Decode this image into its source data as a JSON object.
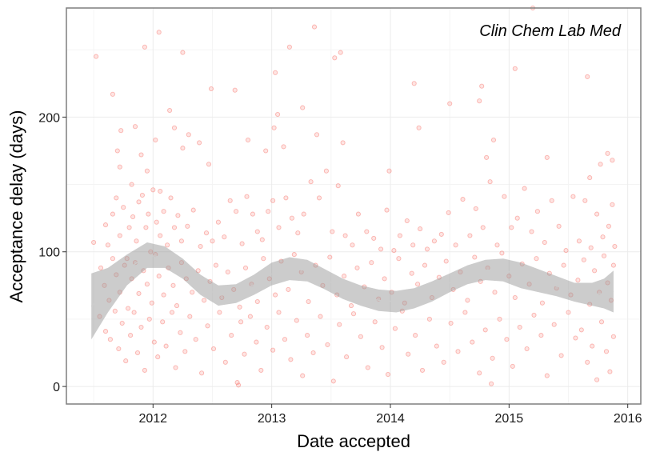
{
  "chart_data": {
    "type": "scatter",
    "annotation": "Clin Chem Lab Med",
    "xlabel": "Date accepted",
    "ylabel": "Acceptance delay (days)",
    "x_ticks": [
      2012,
      2013,
      2014,
      2015,
      2016
    ],
    "y_ticks": [
      0,
      100,
      200
    ],
    "xlim": [
      2011.27,
      2016.11
    ],
    "ylim": [
      -13,
      281
    ],
    "grid": true,
    "point_color": "#f8766d",
    "ribbon_color": "#999999",
    "smooth_line_color": "#cccccc",
    "smooth": [
      {
        "x": 2011.48,
        "lower": 35,
        "upper": 84
      },
      {
        "x": 2011.62,
        "lower": 55,
        "upper": 88
      },
      {
        "x": 2011.78,
        "lower": 75,
        "upper": 98
      },
      {
        "x": 2011.95,
        "lower": 88,
        "upper": 107
      },
      {
        "x": 2012.1,
        "lower": 88,
        "upper": 104
      },
      {
        "x": 2012.25,
        "lower": 80,
        "upper": 95
      },
      {
        "x": 2012.4,
        "lower": 68,
        "upper": 83
      },
      {
        "x": 2012.55,
        "lower": 60,
        "upper": 75
      },
      {
        "x": 2012.7,
        "lower": 62,
        "upper": 76
      },
      {
        "x": 2012.85,
        "lower": 68,
        "upper": 83
      },
      {
        "x": 2013.0,
        "lower": 75,
        "upper": 92
      },
      {
        "x": 2013.15,
        "lower": 79,
        "upper": 96
      },
      {
        "x": 2013.3,
        "lower": 78,
        "upper": 94
      },
      {
        "x": 2013.45,
        "lower": 72,
        "upper": 87
      },
      {
        "x": 2013.6,
        "lower": 65,
        "upper": 80
      },
      {
        "x": 2013.75,
        "lower": 60,
        "upper": 75
      },
      {
        "x": 2013.9,
        "lower": 56,
        "upper": 72
      },
      {
        "x": 2014.05,
        "lower": 55,
        "upper": 71
      },
      {
        "x": 2014.2,
        "lower": 58,
        "upper": 73
      },
      {
        "x": 2014.35,
        "lower": 63,
        "upper": 78
      },
      {
        "x": 2014.5,
        "lower": 70,
        "upper": 84
      },
      {
        "x": 2014.65,
        "lower": 76,
        "upper": 90
      },
      {
        "x": 2014.8,
        "lower": 79,
        "upper": 94
      },
      {
        "x": 2014.95,
        "lower": 78,
        "upper": 95
      },
      {
        "x": 2015.1,
        "lower": 73,
        "upper": 92
      },
      {
        "x": 2015.25,
        "lower": 70,
        "upper": 87
      },
      {
        "x": 2015.4,
        "lower": 67,
        "upper": 82
      },
      {
        "x": 2015.55,
        "lower": 63,
        "upper": 77
      },
      {
        "x": 2015.7,
        "lower": 60,
        "upper": 77
      },
      {
        "x": 2015.8,
        "lower": 58,
        "upper": 80
      },
      {
        "x": 2015.88,
        "lower": 55,
        "upper": 86
      }
    ],
    "points": [
      [
        2011.52,
        245
      ],
      [
        2011.66,
        217
      ],
      [
        2011.73,
        190
      ],
      [
        2011.85,
        193
      ],
      [
        2011.93,
        252
      ],
      [
        2012.05,
        263
      ],
      [
        2012.25,
        248
      ],
      [
        2012.49,
        221
      ],
      [
        2012.69,
        220
      ],
      [
        2013.03,
        233
      ],
      [
        2013.15,
        252
      ],
      [
        2013.36,
        267
      ],
      [
        2013.53,
        244
      ],
      [
        2013.58,
        248
      ],
      [
        2014.2,
        225
      ],
      [
        2015.05,
        236
      ],
      [
        2015.2,
        281
      ],
      [
        2015.66,
        230
      ],
      [
        2014.77,
        223
      ],
      [
        2014.75,
        212
      ],
      [
        2011.7,
        175
      ],
      [
        2011.72,
        163
      ],
      [
        2011.82,
        150
      ],
      [
        2011.9,
        172
      ],
      [
        2011.95,
        160
      ],
      [
        2012.02,
        183
      ],
      [
        2012.06,
        145
      ],
      [
        2012.14,
        205
      ],
      [
        2012.18,
        192
      ],
      [
        2012.25,
        177
      ],
      [
        2012.3,
        187
      ],
      [
        2012.39,
        181
      ],
      [
        2012.47,
        165
      ],
      [
        2012.8,
        183
      ],
      [
        2012.95,
        175
      ],
      [
        2013.02,
        192
      ],
      [
        2013.05,
        202
      ],
      [
        2013.1,
        178
      ],
      [
        2013.26,
        207
      ],
      [
        2013.38,
        187
      ],
      [
        2013.6,
        181
      ],
      [
        2013.99,
        160
      ],
      [
        2014.24,
        192
      ],
      [
        2014.5,
        210
      ],
      [
        2014.81,
        170
      ],
      [
        2014.87,
        183
      ],
      [
        2015.32,
        170
      ],
      [
        2015.68,
        155
      ],
      [
        2015.77,
        165
      ],
      [
        2015.83,
        173
      ],
      [
        2015.87,
        168
      ],
      [
        2011.6,
        120
      ],
      [
        2011.62,
        105
      ],
      [
        2011.66,
        128
      ],
      [
        2011.69,
        140
      ],
      [
        2011.72,
        112
      ],
      [
        2011.75,
        133
      ],
      [
        2011.78,
        95
      ],
      [
        2011.8,
        118
      ],
      [
        2011.83,
        126
      ],
      [
        2011.86,
        108
      ],
      [
        2011.88,
        137
      ],
      [
        2011.91,
        142
      ],
      [
        2011.94,
        118
      ],
      [
        2011.96,
        128
      ],
      [
        2011.98,
        100
      ],
      [
        2012.0,
        146
      ],
      [
        2012.03,
        122
      ],
      [
        2012.06,
        112
      ],
      [
        2012.09,
        130
      ],
      [
        2012.12,
        105
      ],
      [
        2012.15,
        140
      ],
      [
        2012.18,
        118
      ],
      [
        2012.21,
        127
      ],
      [
        2012.24,
        108
      ],
      [
        2012.29,
        119
      ],
      [
        2012.34,
        131
      ],
      [
        2012.4,
        104
      ],
      [
        2012.45,
        114
      ],
      [
        2012.5,
        108
      ],
      [
        2012.55,
        122
      ],
      [
        2012.6,
        111
      ],
      [
        2012.65,
        138
      ],
      [
        2012.7,
        130
      ],
      [
        2012.75,
        106
      ],
      [
        2012.79,
        141
      ],
      [
        2012.84,
        128
      ],
      [
        2012.88,
        115
      ],
      [
        2012.92,
        109
      ],
      [
        2012.97,
        130
      ],
      [
        2013.01,
        138
      ],
      [
        2013.06,
        118
      ],
      [
        2013.12,
        140
      ],
      [
        2013.17,
        125
      ],
      [
        2013.22,
        114
      ],
      [
        2013.27,
        128
      ],
      [
        2013.33,
        152
      ],
      [
        2013.4,
        140
      ],
      [
        2013.46,
        160
      ],
      [
        2013.51,
        115
      ],
      [
        2013.56,
        149
      ],
      [
        2013.62,
        112
      ],
      [
        2013.68,
        105
      ],
      [
        2013.73,
        128
      ],
      [
        2013.8,
        115
      ],
      [
        2013.86,
        110
      ],
      [
        2013.92,
        102
      ],
      [
        2013.97,
        131
      ],
      [
        2014.03,
        101
      ],
      [
        2014.08,
        112
      ],
      [
        2014.14,
        123
      ],
      [
        2014.19,
        105
      ],
      [
        2014.25,
        117
      ],
      [
        2014.31,
        102
      ],
      [
        2014.37,
        108
      ],
      [
        2014.43,
        113
      ],
      [
        2014.49,
        129
      ],
      [
        2014.55,
        105
      ],
      [
        2014.61,
        139
      ],
      [
        2014.67,
        112
      ],
      [
        2014.72,
        132
      ],
      [
        2014.78,
        118
      ],
      [
        2014.84,
        152
      ],
      [
        2014.9,
        105
      ],
      [
        2014.96,
        141
      ],
      [
        2015.02,
        118
      ],
      [
        2015.07,
        125
      ],
      [
        2015.13,
        147
      ],
      [
        2015.19,
        115
      ],
      [
        2015.24,
        130
      ],
      [
        2015.3,
        107
      ],
      [
        2015.36,
        138
      ],
      [
        2015.42,
        119
      ],
      [
        2015.48,
        101
      ],
      [
        2015.54,
        141
      ],
      [
        2015.59,
        108
      ],
      [
        2015.64,
        138
      ],
      [
        2015.69,
        103
      ],
      [
        2015.74,
        128
      ],
      [
        2015.79,
        111
      ],
      [
        2015.84,
        119
      ],
      [
        2015.87,
        135
      ],
      [
        2015.89,
        104
      ],
      [
        2011.5,
        107
      ],
      [
        2011.56,
        88
      ],
      [
        2011.59,
        75
      ],
      [
        2011.63,
        64
      ],
      [
        2011.66,
        95
      ],
      [
        2011.69,
        83
      ],
      [
        2011.72,
        70
      ],
      [
        2011.76,
        90
      ],
      [
        2011.79,
        58
      ],
      [
        2011.82,
        80
      ],
      [
        2011.85,
        92
      ],
      [
        2011.88,
        69
      ],
      [
        2011.92,
        86
      ],
      [
        2011.95,
        76
      ],
      [
        2011.99,
        62
      ],
      [
        2012.02,
        98
      ],
      [
        2012.05,
        82
      ],
      [
        2012.09,
        68
      ],
      [
        2012.13,
        88
      ],
      [
        2012.17,
        75
      ],
      [
        2012.2,
        60
      ],
      [
        2012.24,
        92
      ],
      [
        2012.28,
        80
      ],
      [
        2012.33,
        70
      ],
      [
        2012.38,
        86
      ],
      [
        2012.43,
        64
      ],
      [
        2012.48,
        78
      ],
      [
        2012.53,
        90
      ],
      [
        2012.58,
        66
      ],
      [
        2012.63,
        85
      ],
      [
        2012.68,
        72
      ],
      [
        2012.73,
        59
      ],
      [
        2012.78,
        88
      ],
      [
        2012.83,
        76
      ],
      [
        2012.88,
        63
      ],
      [
        2012.93,
        95
      ],
      [
        2012.98,
        80
      ],
      [
        2013.03,
        68
      ],
      [
        2013.08,
        93
      ],
      [
        2013.14,
        72
      ],
      [
        2013.19,
        98
      ],
      [
        2013.25,
        85
      ],
      [
        2013.31,
        63
      ],
      [
        2013.37,
        90
      ],
      [
        2013.43,
        75
      ],
      [
        2013.49,
        96
      ],
      [
        2013.55,
        68
      ],
      [
        2013.61,
        82
      ],
      [
        2013.67,
        60
      ],
      [
        2013.72,
        88
      ],
      [
        2013.78,
        74
      ],
      [
        2013.84,
        92
      ],
      [
        2013.9,
        65
      ],
      [
        2013.95,
        80
      ],
      [
        2014.01,
        70
      ],
      [
        2014.07,
        95
      ],
      [
        2014.12,
        62
      ],
      [
        2014.18,
        84
      ],
      [
        2014.23,
        76
      ],
      [
        2014.29,
        90
      ],
      [
        2014.35,
        66
      ],
      [
        2014.41,
        81
      ],
      [
        2014.47,
        93
      ],
      [
        2014.53,
        72
      ],
      [
        2014.59,
        85
      ],
      [
        2014.65,
        64
      ],
      [
        2014.71,
        96
      ],
      [
        2014.76,
        78
      ],
      [
        2014.82,
        88
      ],
      [
        2014.88,
        70
      ],
      [
        2014.94,
        99
      ],
      [
        2015.0,
        82
      ],
      [
        2015.05,
        66
      ],
      [
        2015.11,
        91
      ],
      [
        2015.17,
        76
      ],
      [
        2015.23,
        95
      ],
      [
        2015.28,
        62
      ],
      [
        2015.34,
        84
      ],
      [
        2015.4,
        73
      ],
      [
        2015.46,
        90
      ],
      [
        2015.52,
        68
      ],
      [
        2015.58,
        79
      ],
      [
        2015.63,
        94
      ],
      [
        2015.68,
        61
      ],
      [
        2015.72,
        86
      ],
      [
        2015.76,
        70
      ],
      [
        2015.8,
        97
      ],
      [
        2015.83,
        77
      ],
      [
        2015.86,
        64
      ],
      [
        2015.88,
        90
      ],
      [
        2011.55,
        52
      ],
      [
        2011.6,
        41
      ],
      [
        2011.64,
        35
      ],
      [
        2011.68,
        56
      ],
      [
        2011.71,
        28
      ],
      [
        2011.74,
        47
      ],
      [
        2011.77,
        19
      ],
      [
        2011.81,
        38
      ],
      [
        2011.84,
        55
      ],
      [
        2011.87,
        25
      ],
      [
        2011.9,
        44
      ],
      [
        2011.93,
        12
      ],
      [
        2011.97,
        50
      ],
      [
        2012.01,
        33
      ],
      [
        2012.04,
        22
      ],
      [
        2012.08,
        48
      ],
      [
        2012.11,
        30
      ],
      [
        2012.16,
        55
      ],
      [
        2012.19,
        14
      ],
      [
        2012.23,
        40
      ],
      [
        2012.27,
        26
      ],
      [
        2012.31,
        52
      ],
      [
        2012.36,
        35
      ],
      [
        2012.41,
        10
      ],
      [
        2012.46,
        45
      ],
      [
        2012.51,
        28
      ],
      [
        2012.56,
        55
      ],
      [
        2012.61,
        18
      ],
      [
        2012.66,
        38
      ],
      [
        2012.71,
        3
      ],
      [
        2012.72,
        1
      ],
      [
        2012.74,
        48
      ],
      [
        2012.77,
        24
      ],
      [
        2012.82,
        52
      ],
      [
        2012.87,
        33
      ],
      [
        2012.91,
        12
      ],
      [
        2012.96,
        44
      ],
      [
        2013.01,
        27
      ],
      [
        2013.06,
        55
      ],
      [
        2013.11,
        35
      ],
      [
        2013.16,
        20
      ],
      [
        2013.21,
        49
      ],
      [
        2013.26,
        8
      ],
      [
        2013.3,
        38
      ],
      [
        2013.35,
        25
      ],
      [
        2013.41,
        52
      ],
      [
        2013.47,
        31
      ],
      [
        2013.52,
        4
      ],
      [
        2013.57,
        46
      ],
      [
        2013.63,
        22
      ],
      [
        2013.69,
        54
      ],
      [
        2013.75,
        37
      ],
      [
        2013.81,
        14
      ],
      [
        2013.87,
        48
      ],
      [
        2013.93,
        29
      ],
      [
        2013.98,
        9
      ],
      [
        2014.04,
        43
      ],
      [
        2014.1,
        56
      ],
      [
        2014.15,
        24
      ],
      [
        2014.21,
        38
      ],
      [
        2014.27,
        12
      ],
      [
        2014.33,
        50
      ],
      [
        2014.39,
        30
      ],
      [
        2014.45,
        18
      ],
      [
        2014.51,
        47
      ],
      [
        2014.57,
        26
      ],
      [
        2014.63,
        55
      ],
      [
        2014.69,
        33
      ],
      [
        2014.75,
        10
      ],
      [
        2014.8,
        42
      ],
      [
        2014.85,
        2
      ],
      [
        2014.86,
        21
      ],
      [
        2014.92,
        50
      ],
      [
        2014.98,
        35
      ],
      [
        2015.03,
        15
      ],
      [
        2015.09,
        44
      ],
      [
        2015.15,
        28
      ],
      [
        2015.21,
        53
      ],
      [
        2015.27,
        38
      ],
      [
        2015.32,
        8
      ],
      [
        2015.38,
        46
      ],
      [
        2015.44,
        23
      ],
      [
        2015.5,
        55
      ],
      [
        2015.56,
        36
      ],
      [
        2015.61,
        42
      ],
      [
        2015.66,
        18
      ],
      [
        2015.7,
        30
      ],
      [
        2015.74,
        5
      ],
      [
        2015.78,
        48
      ],
      [
        2015.82,
        26
      ],
      [
        2015.85,
        11
      ],
      [
        2015.88,
        37
      ]
    ]
  }
}
